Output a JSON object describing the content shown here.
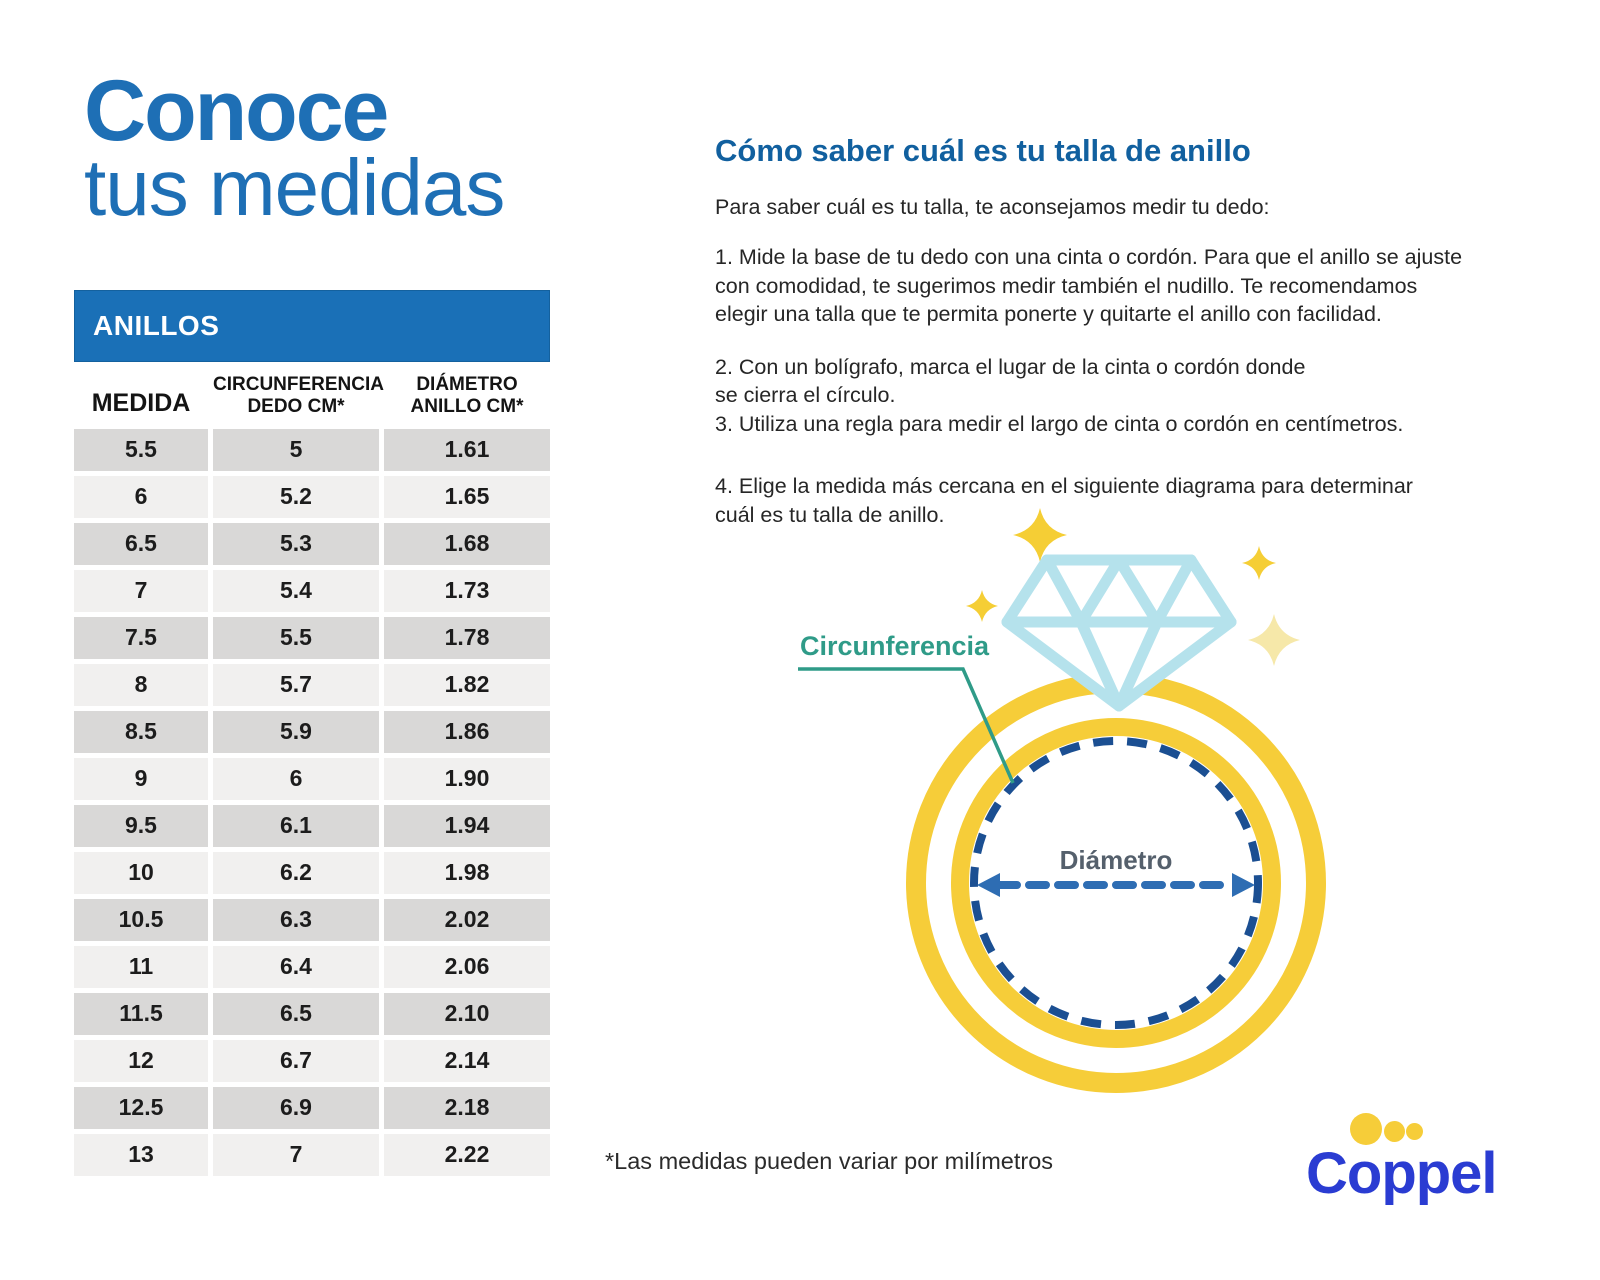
{
  "page": {
    "title_line1": "Conoce",
    "title_line2": "tus medidas",
    "footnote": "*Las medidas pueden variar por milímetros"
  },
  "table": {
    "header": "ANILLOS",
    "columns": [
      {
        "label": "MEDIDA"
      },
      {
        "line1": "CIRCUNFERENCIA",
        "line2": "DEDO CM*"
      },
      {
        "line1": "DIÁMETRO",
        "line2": "ANILLO CM*"
      }
    ],
    "rows": [
      [
        "5.5",
        "5",
        "1.61"
      ],
      [
        "6",
        "5.2",
        "1.65"
      ],
      [
        "6.5",
        "5.3",
        "1.68"
      ],
      [
        "7",
        "5.4",
        "1.73"
      ],
      [
        "7.5",
        "5.5",
        "1.78"
      ],
      [
        "8",
        "5.7",
        "1.82"
      ],
      [
        "8.5",
        "5.9",
        "1.86"
      ],
      [
        "9",
        "6",
        "1.90"
      ],
      [
        "9.5",
        "6.1",
        "1.94"
      ],
      [
        "10",
        "6.2",
        "1.98"
      ],
      [
        "10.5",
        "6.3",
        "2.02"
      ],
      [
        "11",
        "6.4",
        "2.06"
      ],
      [
        "11.5",
        "6.5",
        "2.10"
      ],
      [
        "12",
        "6.7",
        "2.14"
      ],
      [
        "12.5",
        "6.9",
        "2.18"
      ],
      [
        "13",
        "7",
        "2.22"
      ]
    ]
  },
  "instructions": {
    "heading": "Cómo saber cuál es tu talla de anillo",
    "intro": "Para saber cuál es tu talla, te aconsejamos medir tu dedo:",
    "steps": [
      "1. Mide la base de tu dedo con una cinta o cordón. Para que el anillo se ajuste\ncon comodidad, te sugerimos medir también el nudillo. Te recomendamos\nelegir una talla que te permita ponerte y quitarte el anillo con facilidad.",
      "2. Con un bolígrafo, marca el lugar de la cinta o cordón donde\nse cierra el círculo.",
      "3. Utiliza una regla para medir el largo de cinta o cordón en centímetros.",
      "4. Elige la medida más cercana en el siguiente diagrama para determinar\ncuál es tu talla de anillo."
    ]
  },
  "diagram": {
    "circumference_label": "Circunferencia",
    "diameter_label": "Diámetro"
  },
  "brand": {
    "logo_text": "Coppel"
  },
  "colors": {
    "title_blue": "#1e6fb5",
    "banner_blue": "#1a70b7",
    "heading_blue": "#11609f",
    "row_dark": "#d9d8d7",
    "row_light": "#f1f0ef",
    "ring_yellow": "#f6cd39",
    "diamond_blue": "#b5e2ec",
    "dashed_blue": "#1b4f92",
    "arrow_blue": "#2e6db3",
    "teal": "#2f9b88",
    "diameter_gray": "#55606c",
    "coppel_blue": "#2a3cd2"
  }
}
